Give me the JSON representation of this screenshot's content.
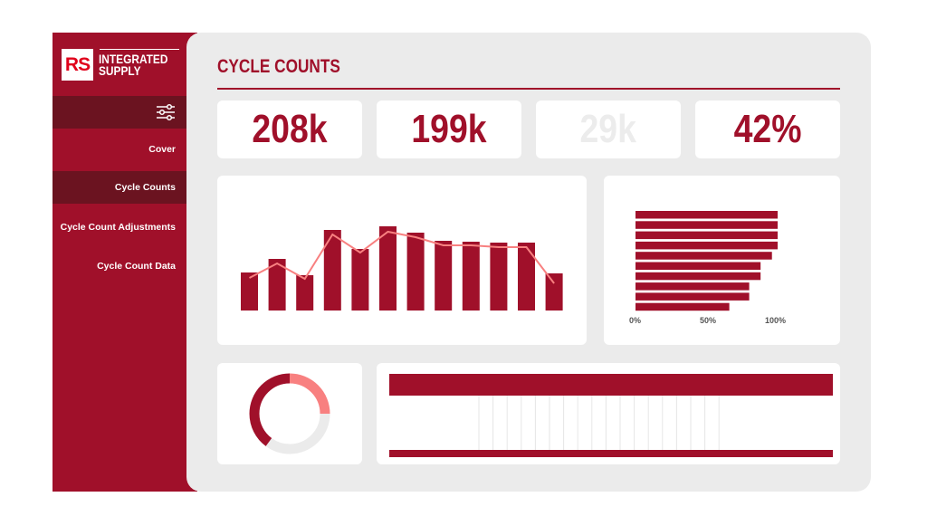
{
  "brand": {
    "logo_mark": "RS",
    "logo_line1": "INTEGRATED",
    "logo_line2": "SUPPLY",
    "accent": "#a0102a",
    "dark": "#6b1320",
    "pink": "#f88080"
  },
  "sidebar": {
    "filter_icon": "sliders-icon",
    "items": [
      {
        "label": "Cover"
      },
      {
        "label": "Cycle Counts",
        "selected": true
      },
      {
        "label": "Cycle Count Adjustments"
      },
      {
        "label": "Cycle Count Data"
      }
    ]
  },
  "header": {
    "title": "CYCLE COUNTS"
  },
  "kpis": [
    {
      "value": "208k"
    },
    {
      "value": "199k"
    },
    {
      "value": "29k",
      "faded": true
    },
    {
      "value": "42%"
    }
  ],
  "chart_data": [
    {
      "type": "bar",
      "bars": [
        42,
        57,
        39,
        89,
        68,
        93,
        86,
        77,
        76,
        75,
        75,
        41
      ],
      "line": [
        36,
        52,
        35,
        84,
        64,
        87,
        81,
        72,
        72,
        70,
        70,
        30
      ]
    },
    {
      "type": "bar",
      "orientation": "horizontal",
      "values": [
        100,
        100,
        100,
        100,
        96,
        88,
        88,
        80,
        80,
        66
      ],
      "xticks": [
        "0%",
        "50%",
        "100%"
      ],
      "xlim": [
        0,
        100
      ]
    },
    {
      "type": "pie",
      "donut": true,
      "values": [
        25,
        35,
        40
      ],
      "colors": [
        "#f88080",
        "#ebebeb",
        "#a0102a"
      ]
    }
  ]
}
